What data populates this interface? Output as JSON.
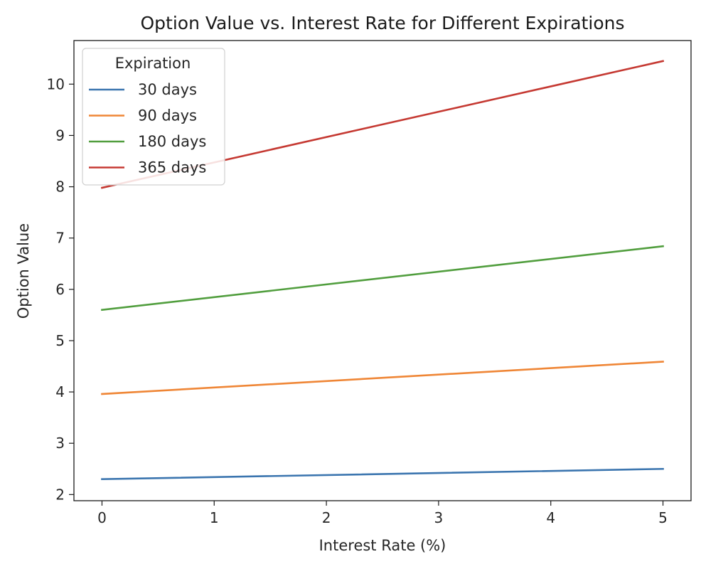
{
  "chart_data": {
    "type": "line",
    "title": "Option Value vs. Interest Rate for Different Expirations",
    "xlabel": "Interest Rate (%)",
    "ylabel": "Option Value",
    "xlim": [
      -0.25,
      5.25
    ],
    "ylim": [
      1.88,
      10.85
    ],
    "xticks": [
      0,
      1,
      2,
      3,
      4,
      5
    ],
    "yticks": [
      2,
      3,
      4,
      5,
      6,
      7,
      8,
      9,
      10
    ],
    "grid": false,
    "legend": {
      "title": "Expiration",
      "placement": "top-left"
    },
    "x": [
      0,
      5
    ],
    "series": [
      {
        "name": "30 days",
        "color": "#3b75af",
        "values": [
          2.3,
          2.5
        ]
      },
      {
        "name": "90 days",
        "color": "#ef8636",
        "values": [
          3.96,
          4.59
        ]
      },
      {
        "name": "180 days",
        "color": "#519e3e",
        "values": [
          5.6,
          6.84
        ]
      },
      {
        "name": "365 days",
        "color": "#c53932",
        "values": [
          7.98,
          10.45
        ]
      }
    ]
  }
}
